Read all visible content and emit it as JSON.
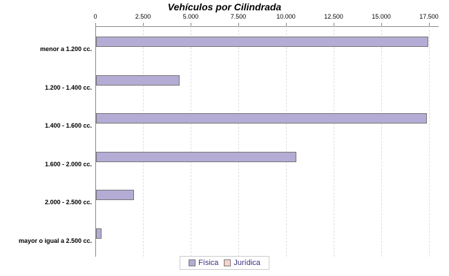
{
  "chart_data": {
    "type": "bar",
    "orientation": "horizontal",
    "title": "Vehículos por Cilindrada",
    "categories": [
      "menor a 1.200 cc.",
      "1.200 - 1.400 cc.",
      "1.400 - 1.600 cc.",
      "1.600 - 2.000 cc.",
      "2.000 - 2.500 cc.",
      "mayor o igual a 2.500 cc."
    ],
    "series": [
      {
        "name": "Física",
        "color": "#b4acd4",
        "border_color": "#757575",
        "values": [
          17430,
          4380,
          17360,
          10500,
          1990,
          290
        ]
      },
      {
        "name": "Jurídica",
        "color": "#f8d2ce",
        "border_color": "#a98f8f",
        "values": [
          0,
          0,
          0,
          0,
          0,
          0
        ]
      }
    ],
    "x_ticks": [
      "0",
      "2.500",
      "5.000",
      "7.500",
      "10.000",
      "12.500",
      "15.000",
      "17.500"
    ],
    "x_tick_values": [
      0,
      2500,
      5000,
      7500,
      10000,
      12500,
      15000,
      17500
    ],
    "xlim": [
      0,
      17500
    ],
    "grid": true,
    "gridline_style": "dashed",
    "legend_position": "bottom"
  },
  "colors": {
    "background": "#ffffff",
    "axis": "#888888",
    "grid": "#dddddd",
    "title": "#000000",
    "tick_label": "#000000",
    "category_label": "#000000",
    "legend_text": "#38307e",
    "legend_border": "#cccccc"
  }
}
